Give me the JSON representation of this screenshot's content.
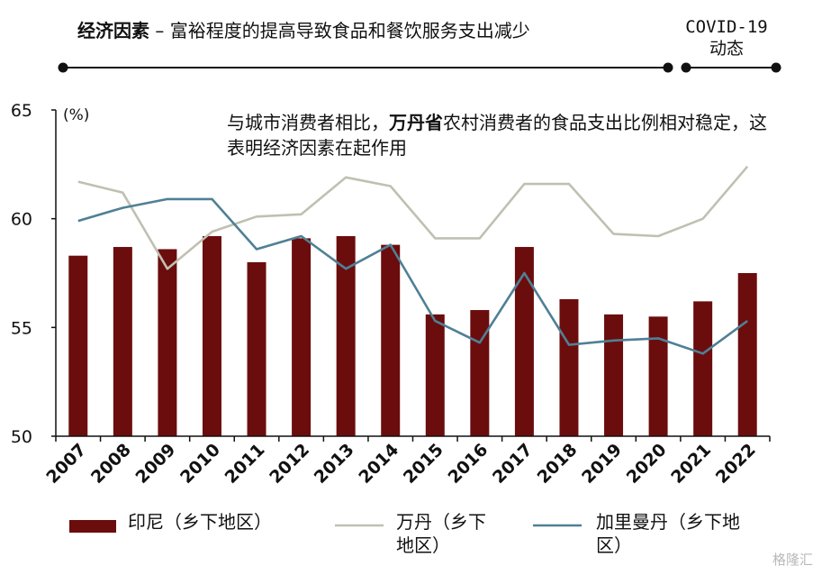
{
  "header": {
    "title_bold": "经济因素",
    "title_rest": " – 富裕程度的提高导致食品和餐饮服务支出减少",
    "covid_line1": "COVID-19",
    "covid_line2": "动态"
  },
  "annotation": {
    "part1": "与城市消费者相比，",
    "bold": "万丹省",
    "part2": "农村消费者的食品支出比例相对稳定，这表明经济因素在起作用"
  },
  "watermark": "格隆汇",
  "colors": {
    "bar": "#6b0d0d",
    "banten": "#c0c0b2",
    "kalimantan": "#4f8095",
    "axis": "#111111"
  },
  "chart_data": {
    "type": "bar+line",
    "unit_label": "(%)",
    "categories": [
      "2007",
      "2008",
      "2009",
      "2010",
      "2011",
      "2012",
      "2013",
      "2014",
      "2015",
      "2016",
      "2017",
      "2018",
      "2019",
      "2020",
      "2021",
      "2022"
    ],
    "ylim": [
      50,
      65
    ],
    "yticks": [
      50,
      55,
      60,
      65
    ],
    "grid": false,
    "series": [
      {
        "name": "印尼（乡下地区）",
        "kind": "bar",
        "values": [
          58.3,
          58.7,
          58.6,
          59.2,
          58.0,
          59.1,
          59.2,
          58.8,
          55.6,
          55.8,
          58.7,
          56.3,
          55.6,
          55.5,
          56.2,
          57.5
        ]
      },
      {
        "name": "万丹（乡下地区）",
        "kind": "line",
        "values": [
          61.7,
          61.2,
          57.7,
          59.4,
          60.1,
          60.2,
          61.9,
          61.5,
          59.1,
          59.1,
          61.6,
          61.6,
          59.3,
          59.2,
          60.0,
          62.4
        ]
      },
      {
        "name": "加里曼丹（乡下地区）",
        "kind": "line",
        "values": [
          59.9,
          60.5,
          60.9,
          60.9,
          58.6,
          59.2,
          57.7,
          58.8,
          55.3,
          54.3,
          57.5,
          54.2,
          54.4,
          54.5,
          53.8,
          55.3
        ]
      }
    ]
  },
  "legend": {
    "item1": "印尼（乡下地区）",
    "item2_line1": "万丹（乡",
    "item2_line1b": "下",
    "item2_line2": "地区）",
    "item3_line1": "加里曼丹（乡下地",
    "item3_line2": "区）"
  }
}
